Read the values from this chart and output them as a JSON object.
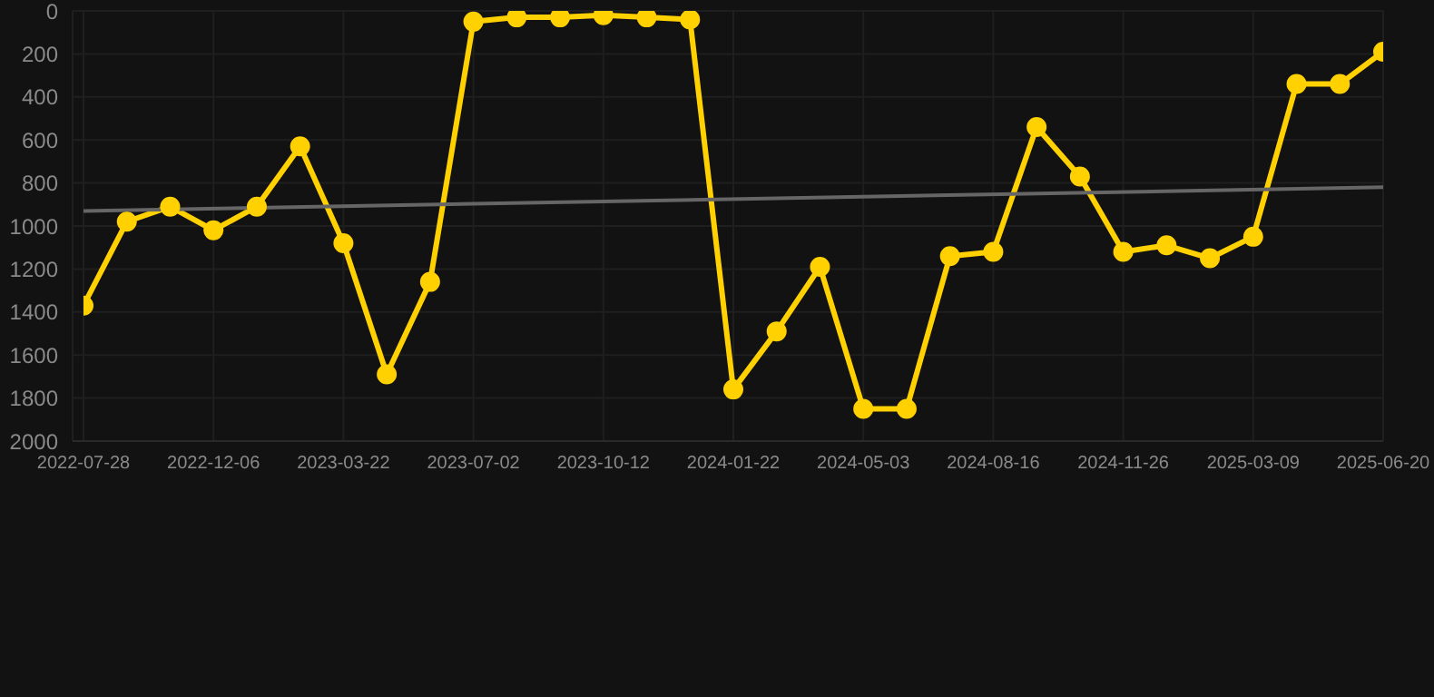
{
  "chart_data": {
    "type": "line",
    "categories": [
      "2022-07-28",
      null,
      null,
      "2022-12-06",
      null,
      null,
      "2023-03-22",
      null,
      null,
      "2023-07-02",
      null,
      null,
      "2023-10-12",
      null,
      null,
      "2024-01-22",
      null,
      null,
      "2024-05-03",
      null,
      null,
      "2024-08-16",
      null,
      null,
      "2024-11-26",
      null,
      null,
      "2025-03-09",
      null,
      null,
      "2025-06-20"
    ],
    "series": [
      {
        "color": "#ffd100",
        "marker": "circle",
        "values": [
          1370,
          980,
          910,
          1020,
          910,
          630,
          1080,
          1690,
          1260,
          50,
          30,
          30,
          20,
          30,
          40,
          1760,
          1490,
          1190,
          1850,
          1850,
          1140,
          1120,
          540,
          770,
          1120,
          1090,
          1150,
          1050,
          340,
          340,
          190
        ]
      },
      {
        "color": "#666666",
        "marker": "none",
        "values": [
          930,
          null,
          null,
          null,
          null,
          null,
          null,
          null,
          null,
          null,
          null,
          null,
          null,
          null,
          null,
          null,
          null,
          null,
          null,
          null,
          null,
          null,
          null,
          null,
          null,
          null,
          null,
          null,
          null,
          null,
          820
        ]
      }
    ],
    "ylim": [
      2000,
      0
    ],
    "yticks": [
      0,
      200,
      400,
      600,
      800,
      1000,
      1200,
      1400,
      1600,
      1800,
      2000
    ],
    "grid": true,
    "line_style": "solid"
  }
}
